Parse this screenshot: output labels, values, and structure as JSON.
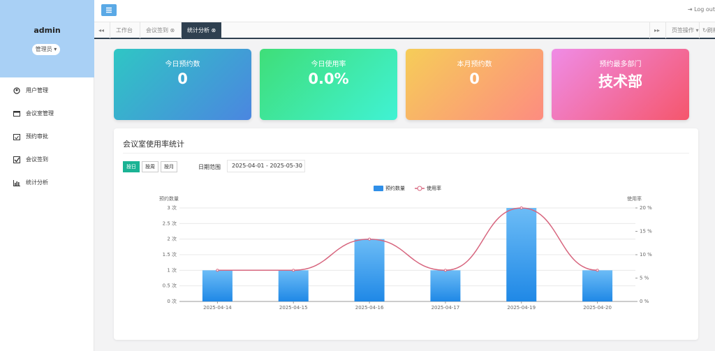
{
  "sidebar": {
    "user": "admin",
    "role": "管理员",
    "menu": [
      "用户管理",
      "会议室管理",
      "预约审批",
      "会议签到",
      "统计分析"
    ]
  },
  "topbar": {
    "logout": "Log out"
  },
  "tabs": {
    "items": [
      "工作台",
      "会议签到",
      "统计分析"
    ],
    "actions": "页签操作",
    "refresh": "刷新"
  },
  "cards": [
    {
      "title": "今日预约数",
      "value": "0"
    },
    {
      "title": "今日使用率",
      "value": "0.0%"
    },
    {
      "title": "本月预约数",
      "value": "0"
    },
    {
      "title": "预约最多部门",
      "value": "技术部"
    }
  ],
  "panel": {
    "title": "会议室使用率统计",
    "range_buttons": [
      "按日",
      "按周",
      "按月"
    ],
    "date_label": "日期范围",
    "date_value": "2025-04-01 - 2025-05-30"
  },
  "chart_data": {
    "type": "bar",
    "y_label": "预约数量",
    "y2_label": "使用率",
    "categories": [
      "2025-04-14",
      "2025-04-15",
      "2025-04-16",
      "2025-04-17",
      "2025-04-19",
      "2025-04-20"
    ],
    "series": [
      {
        "name": "预约数量",
        "color": "#2f8fe8",
        "values": [
          1,
          1,
          2,
          1,
          3,
          1
        ]
      },
      {
        "name": "使用率",
        "type": "line",
        "axis": "y2",
        "color": "#d7657e",
        "values": [
          6.67,
          6.67,
          13.33,
          6.67,
          20,
          6.67
        ]
      }
    ],
    "ylim": [
      0,
      3
    ],
    "yticks": [
      {
        "value": 0,
        "label": "0 次"
      },
      {
        "value": 0.5,
        "label": "0.5 次"
      },
      {
        "value": 1,
        "label": "1 次"
      },
      {
        "value": 1.5,
        "label": "1.5 次"
      },
      {
        "value": 2,
        "label": "2 次"
      },
      {
        "value": 2.5,
        "label": "2.5 次"
      },
      {
        "value": 3,
        "label": "3 次"
      }
    ],
    "y2lim": [
      0,
      20
    ],
    "y2ticks": [
      {
        "value": 0,
        "label": "0 %"
      },
      {
        "value": 5,
        "label": "5 %"
      },
      {
        "value": 10,
        "label": "10 %"
      },
      {
        "value": 15,
        "label": "15 %"
      },
      {
        "value": 20,
        "label": "20 %"
      }
    ],
    "grid": true
  }
}
